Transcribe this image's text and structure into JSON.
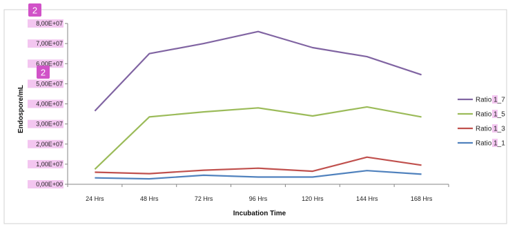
{
  "chart_data": {
    "type": "line",
    "title": "",
    "xlabel": "Incubation Time",
    "ylabel": "Endospore/mL",
    "categories": [
      "24 Hrs",
      "48 Hrs",
      "72 Hrs",
      "96 Hrs",
      "120 Hrs",
      "144 Hrs",
      "168 Hrs"
    ],
    "ylim": [
      0,
      80000000
    ],
    "ytick_values": [
      0,
      10000000,
      20000000,
      30000000,
      40000000,
      50000000,
      60000000,
      70000000,
      80000000
    ],
    "ytick_labels": [
      "0,00E+00",
      "1,00E+07",
      "2,00E+07",
      "3,00E+07",
      "4,00E+07",
      "5,00E+07",
      "6,00E+07",
      "7,00E+07",
      "8,00E+07"
    ],
    "grid": false,
    "legend_position": "right",
    "series": [
      {
        "name": "Ratio 1_7",
        "color": "#8064a2",
        "values": [
          36500000,
          65000000,
          70000000,
          76000000,
          68000000,
          63500000,
          54500000
        ]
      },
      {
        "name": "Ratio 1_5",
        "color": "#9bbb59",
        "values": [
          7500000,
          33500000,
          36000000,
          38000000,
          34000000,
          38500000,
          33500000
        ]
      },
      {
        "name": "Ratio 1_3",
        "color": "#c0504d",
        "values": [
          6000000,
          5300000,
          7000000,
          8000000,
          6500000,
          13500000,
          9500000
        ]
      },
      {
        "name": "Ratio 1_1",
        "color": "#4f81bd",
        "values": [
          3200000,
          2700000,
          4500000,
          3600000,
          3600000,
          6800000,
          5000000
        ]
      }
    ]
  },
  "annotations": {
    "badge_top": "2",
    "badge_mid": "2"
  },
  "colors": {
    "axis": "#868686",
    "frame": "#d0d0d0",
    "badge": "#d152c8",
    "highlight": "#f3c6f0"
  }
}
